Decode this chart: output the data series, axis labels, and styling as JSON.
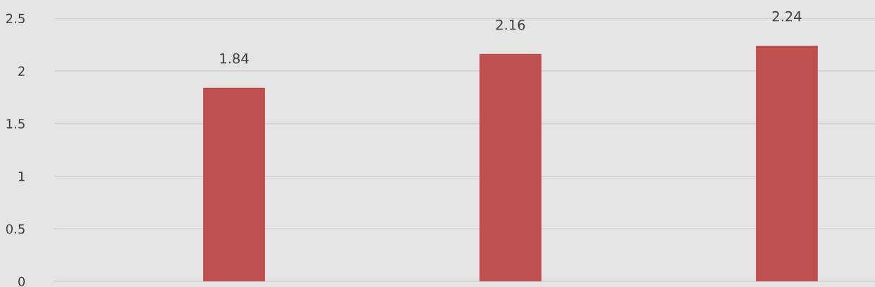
{
  "chart_data": {
    "type": "bar",
    "categories": [
      null,
      null,
      null
    ],
    "values": [
      1.84,
      2.16,
      2.24
    ],
    "color": "#c0504d",
    "ylim": [
      0,
      2.5
    ],
    "yticks": [
      0,
      0.5,
      1,
      1.5,
      2,
      2.5
    ],
    "grid": "y",
    "data_labels": true,
    "legend": false
  }
}
